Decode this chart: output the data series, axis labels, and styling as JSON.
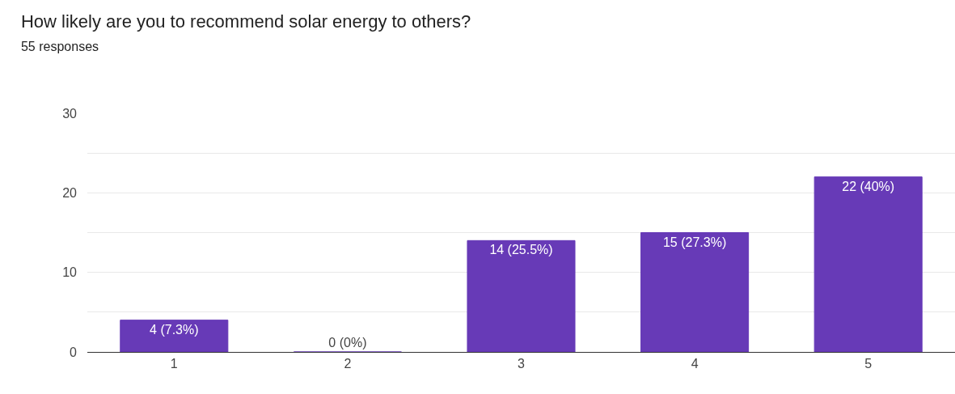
{
  "chart_data": {
    "type": "bar",
    "title": "How likely are you to recommend solar energy to others?",
    "subtitle": "55 responses",
    "categories": [
      "1",
      "2",
      "3",
      "4",
      "5"
    ],
    "values": [
      4,
      0,
      14,
      15,
      22
    ],
    "value_labels": [
      "4 (7.3%)",
      "0 (0%)",
      "14 (25.5%)",
      "15 (27.3%)",
      "22 (40%)"
    ],
    "color": "#673ab7",
    "ylim": [
      0,
      30
    ],
    "yticks": [
      0,
      {
        "value": 5,
        "label": null
      },
      10,
      {
        "value": 15,
        "label": null
      },
      20,
      {
        "value": 25,
        "label": null
      },
      30
    ],
    "grid": "y",
    "legend": false
  }
}
